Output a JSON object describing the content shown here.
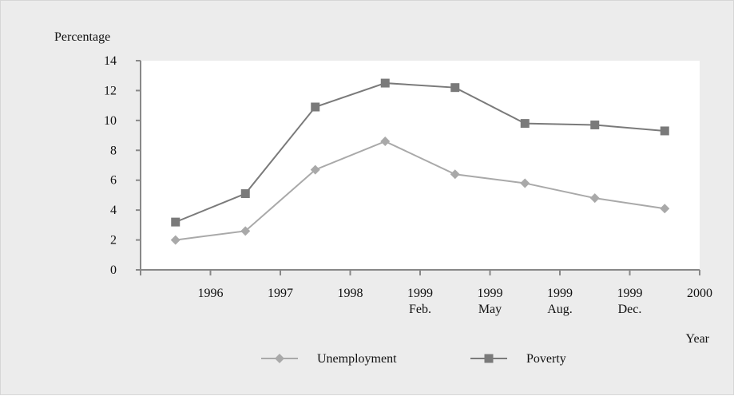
{
  "chart_data": {
    "type": "line",
    "title": "",
    "ylabel": "Percentage",
    "xlabel": "Year",
    "ylim": [
      0,
      14
    ],
    "yticks": [
      0,
      2,
      4,
      6,
      8,
      10,
      12,
      14
    ],
    "x_tick_labels": [
      [
        "1996"
      ],
      [
        "1997"
      ],
      [
        "1998"
      ],
      [
        "1999",
        "Feb."
      ],
      [
        "1999",
        "May"
      ],
      [
        "1999",
        "Aug."
      ],
      [
        "1999",
        "Dec."
      ],
      [
        "2000"
      ]
    ],
    "series": [
      {
        "name": "Unemployment",
        "color": "#a9a9a9",
        "marker": "diamond",
        "values": [
          2.0,
          2.6,
          6.7,
          8.6,
          6.4,
          5.8,
          4.8,
          4.1
        ]
      },
      {
        "name": "Poverty",
        "color": "#7a7a7a",
        "marker": "square",
        "values": [
          3.2,
          5.1,
          10.9,
          12.5,
          12.2,
          9.8,
          9.7,
          9.3
        ]
      }
    ],
    "grid": false,
    "legend": "bottom-center"
  }
}
